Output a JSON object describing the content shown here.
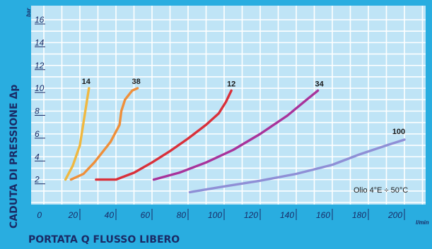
{
  "chart_data": {
    "type": "line",
    "ylabel": "CADUTA DI PRESSIONE Δp",
    "xlabel": "PORTATA Q FLUSSO LIBERO",
    "y_unit": "bar",
    "x_unit": "l/min",
    "xlim": [
      0,
      210
    ],
    "ylim": [
      0,
      17
    ],
    "x_ticks": [
      "0",
      "20",
      "40",
      "60",
      "80",
      "100",
      "120",
      "140",
      "160",
      "180",
      "200"
    ],
    "y_ticks": [
      "2",
      "4",
      "6",
      "8",
      "10",
      "12",
      "14",
      "16"
    ],
    "grid": true,
    "note": "Olio 4°E ÷ 50°C",
    "colors": {
      "background": "#29ade0",
      "plot_area": "#bfe4f6",
      "grid": "#ffffff",
      "text": "#1a2b66"
    },
    "series": [
      {
        "name": "14",
        "color": "#f0b840",
        "x": [
          12,
          16,
          20,
          22,
          24,
          25
        ],
        "y": [
          2,
          3.2,
          5,
          7,
          9,
          10
        ]
      },
      {
        "name": "38",
        "color": "#ef8f3a",
        "x": [
          15,
          22,
          28,
          33,
          37,
          40,
          42,
          43,
          45,
          49,
          52
        ],
        "y": [
          2,
          2.5,
          3.5,
          4.5,
          5.3,
          6.2,
          6.8,
          8,
          9,
          9.8,
          10
        ]
      },
      {
        "name": "12",
        "color": "#d9303a",
        "x": [
          29,
          40,
          50,
          60,
          70,
          80,
          90,
          97,
          101,
          104
        ],
        "y": [
          2,
          2,
          2.6,
          3.5,
          4.5,
          5.6,
          6.8,
          7.8,
          8.8,
          9.8
        ]
      },
      {
        "name": "34",
        "color": "#a8339b",
        "x": [
          61,
          75,
          90,
          105,
          120,
          135,
          145,
          152
        ],
        "y": [
          2,
          2.6,
          3.5,
          4.6,
          6,
          7.6,
          8.9,
          9.8
        ]
      },
      {
        "name": "100",
        "color": "#8f8fd6",
        "x": [
          81,
          100,
          120,
          140,
          160,
          175,
          190,
          200
        ],
        "y": [
          0.9,
          1.4,
          1.9,
          2.5,
          3.3,
          4.2,
          5,
          5.5
        ]
      }
    ]
  }
}
